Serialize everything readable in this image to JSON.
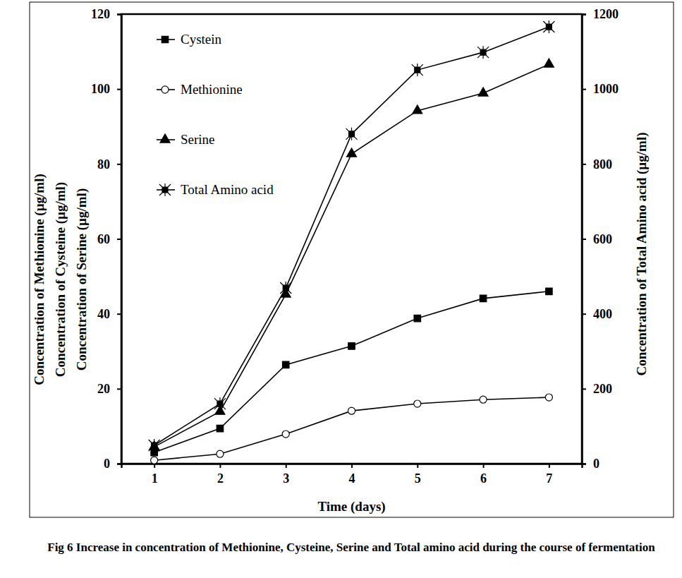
{
  "chart_data": {
    "type": "line",
    "title": "Fig 6 Increase in concentration of Methionine, Cysteine, Serine and Total amino acid during the course of fermentation",
    "xlabel": "Time (days)",
    "ylabel": [
      "Concentration of Methionine (µg/ml)",
      "Concentration of Cysteine (µg/ml)",
      "Concentration of Serine (µg/ml)"
    ],
    "y2label": "Concentration of Total Amino acid (µg/ml)",
    "x": [
      1,
      2,
      3,
      4,
      5,
      6,
      7
    ],
    "xlim": [
      0.5,
      7.5
    ],
    "xticks": [
      1,
      2,
      3,
      4,
      5,
      6,
      7
    ],
    "ylim": [
      0,
      120
    ],
    "yticks": [
      0,
      20,
      40,
      60,
      80,
      100,
      120
    ],
    "y2lim": [
      0,
      1200
    ],
    "y2ticks": [
      0,
      200,
      400,
      600,
      800,
      1000,
      1200
    ],
    "legend": "upper left",
    "grid": false,
    "series": [
      {
        "name": "Cystein",
        "color": "#000000",
        "marker": "square",
        "values": [
          3.0,
          9.4,
          26.4,
          31.4,
          38.8,
          44.1,
          46.0
        ]
      },
      {
        "name": "Methionine",
        "color": "#000000",
        "marker": "open-circle",
        "values": [
          0.9,
          2.6,
          7.9,
          14.1,
          16.0,
          17.1,
          17.7
        ]
      },
      {
        "name": "Serine",
        "color": "#000000",
        "marker": "triangle",
        "values": [
          4.5,
          13.9,
          45.2,
          82.7,
          94.2,
          98.9,
          106.6
        ]
      },
      {
        "name": "Total Amino acid",
        "color": "#000000",
        "marker": "star-square",
        "axis": "y2",
        "values": [
          49,
          160,
          469,
          880,
          1051,
          1098,
          1166
        ]
      }
    ]
  }
}
